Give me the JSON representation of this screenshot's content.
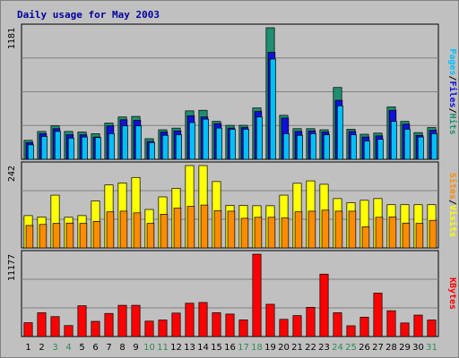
{
  "chart_data": {
    "type": "bar",
    "title": "Daily usage for May 2003",
    "days": [
      "1",
      "2",
      "3",
      "4",
      "5",
      "6",
      "7",
      "8",
      "9",
      "10",
      "11",
      "12",
      "13",
      "14",
      "15",
      "16",
      "17",
      "18",
      "19",
      "20",
      "21",
      "22",
      "23",
      "24",
      "25",
      "26",
      "27",
      "28",
      "29",
      "30",
      "31"
    ],
    "weekend_days": [
      "3",
      "4",
      "10",
      "11",
      "17",
      "18",
      "24",
      "25",
      "31"
    ],
    "panels": [
      {
        "id": "hits-files-pages",
        "axis_max_label": "1181",
        "ymax": 1181,
        "side_label": [
          "Pages",
          "Files",
          "Hits"
        ],
        "series": [
          {
            "name": "Hits",
            "color": "#1f8f6f",
            "values": [
              170,
              250,
              300,
              250,
              245,
              230,
              325,
              380,
              385,
              185,
              265,
              280,
              435,
              440,
              340,
              305,
              305,
              461,
              1181,
              395,
              275,
              275,
              265,
              645,
              270,
              225,
              235,
              470,
              340,
              240,
              285
            ]
          },
          {
            "name": "Files",
            "color": "#1010d8",
            "values": [
              150,
              230,
              275,
              220,
              220,
              200,
              300,
              355,
              350,
              160,
              245,
              255,
              390,
              380,
              320,
              280,
              285,
              430,
              960,
              370,
              250,
              255,
              245,
              530,
              250,
              200,
              210,
              440,
              315,
              215,
              260
            ]
          },
          {
            "name": "Pages",
            "color": "#00bfff",
            "values": [
              130,
              205,
              250,
              190,
              200,
              195,
              230,
              300,
              300,
              150,
              215,
              220,
              330,
              360,
              280,
              270,
              270,
              380,
              900,
              230,
              215,
              230,
              220,
              480,
              220,
              165,
              180,
              340,
              270,
              200,
              230
            ]
          }
        ]
      },
      {
        "id": "visits-sites",
        "axis_max_label": "242",
        "ymax": 242,
        "side_label": [
          "Sites",
          "Visits"
        ],
        "series": [
          {
            "name": "Visits",
            "color": "#ffff00",
            "values": [
              95,
              91,
              155,
              90,
              95,
              138,
              185,
              191,
              207,
              113,
              150,
              175,
              242,
              242,
              195,
              125,
              125,
              124,
              124,
              155,
              190,
              197,
              187,
              145,
              133,
              140,
              145,
              127,
              127,
              127,
              127
            ]
          },
          {
            "name": "Sites",
            "color": "#ff8c00",
            "values": [
              66,
              69,
              72,
              73,
              72,
              78,
              106,
              108,
              103,
              72,
              99,
              117,
              122,
              126,
              109,
              108,
              87,
              90,
              90,
              88,
              106,
              108,
              111,
              108,
              108,
              62,
              90,
              91,
              73,
              72,
              81
            ]
          }
        ]
      },
      {
        "id": "kbytes",
        "axis_max_label": "11177",
        "ymax": 11177,
        "side_label": [
          "KBytes"
        ],
        "series": [
          {
            "name": "KBytes",
            "color": "#ff0000",
            "values": [
              1880,
              3230,
              2700,
              1490,
              4180,
              2060,
              3130,
              4240,
              4240,
              2090,
              2240,
              3180,
              4520,
              4620,
              3230,
              3050,
              2260,
              11177,
              4380,
              2330,
              2840,
              3960,
              8470,
              3230,
              1460,
              2630,
              5890,
              3500,
              1840,
              2910,
              2240
            ]
          }
        ]
      }
    ],
    "colors": {
      "panel_bg": "#c0c0c0",
      "frame_bg": "#c0c0c0",
      "title": "#0000a0",
      "weekend_label": "#2e8b57",
      "weekday_label": "#000000"
    }
  }
}
